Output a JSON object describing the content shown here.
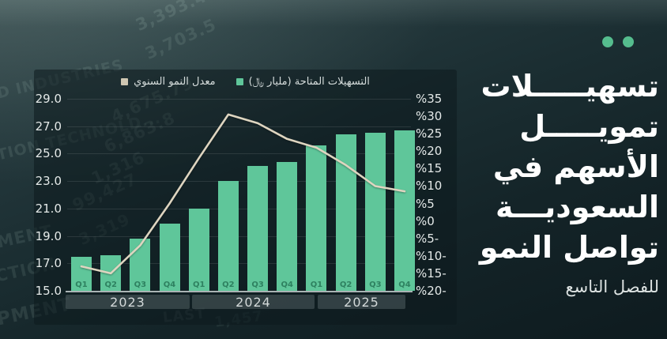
{
  "headline": {
    "lines": [
      "تسهيـــــلات",
      "تمويـــــل",
      "الأسهم في",
      "السعوديـــة",
      "تواصل النمو"
    ],
    "subtitle": "للفصل التاسع"
  },
  "brand": {
    "dot_color": "#55bd8e"
  },
  "background_ticker": [
    {
      "text": "3,393.40",
      "x": 168,
      "y": 22,
      "s": 21,
      "r": -24,
      "o": 0.14
    },
    {
      "text": "3,703.5",
      "x": 180,
      "y": 58,
      "s": 21,
      "r": -24,
      "o": 0.12
    },
    {
      "text": "4,675.79",
      "x": 137,
      "y": 138,
      "s": 21,
      "r": -24,
      "o": 0.16
    },
    {
      "text": "6,863.8",
      "x": 128,
      "y": 176,
      "s": 21,
      "r": -24,
      "o": 0.15
    },
    {
      "text": "1,316",
      "x": 112,
      "y": 216,
      "s": 21,
      "r": -24,
      "o": 0.14
    },
    {
      "text": "99,427",
      "x": 88,
      "y": 250,
      "s": 21,
      "r": -24,
      "o": 0.13
    },
    {
      "text": "3,319",
      "x": 96,
      "y": 293,
      "s": 20,
      "r": -24,
      "o": 0.1
    },
    {
      "text": "D INDUSTRIES",
      "x": -6,
      "y": 108,
      "s": 19,
      "r": -13,
      "o": 0.12
    },
    {
      "text": "TION TECHNOLD...",
      "x": -6,
      "y": 186,
      "s": 19,
      "r": -13,
      "o": 0.12
    },
    {
      "text": "MENT",
      "x": -6,
      "y": 295,
      "s": 21,
      "r": -12,
      "o": 0.12
    },
    {
      "text": "CTION",
      "x": -8,
      "y": 338,
      "s": 21,
      "r": -12,
      "o": 0.11
    },
    {
      "text": "PMENT",
      "x": -6,
      "y": 392,
      "s": 23,
      "r": -12,
      "o": 0.12
    },
    {
      "text": "LAST",
      "x": 205,
      "y": 392,
      "s": 18,
      "r": -6,
      "o": 0.1
    },
    {
      "text": "1,457",
      "x": 270,
      "y": 398,
      "s": 18,
      "r": -8,
      "o": 0.08
    }
  ],
  "chart_data": {
    "type": "combo",
    "title": "",
    "categories": [
      "Q1",
      "Q2",
      "Q3",
      "Q4",
      "Q1",
      "Q2",
      "Q3",
      "Q4",
      "Q1",
      "Q2",
      "Q3",
      "Q4"
    ],
    "year_groups": [
      "2023",
      "2024",
      "2025"
    ],
    "series": [
      {
        "name": "التسهيلات المتاحة (مليار ﷼)",
        "type": "bar",
        "axis": "left",
        "color": "#5fc69a",
        "values": [
          17.5,
          17.6,
          18.8,
          19.9,
          21.0,
          23.0,
          24.1,
          24.4,
          25.6,
          26.4,
          26.5,
          26.7
        ]
      },
      {
        "name": "معدل النمو السنوي",
        "type": "line",
        "axis": "right",
        "color": "#ded5c0",
        "values": [
          -13,
          -15,
          -7,
          5,
          18,
          30.5,
          28,
          23.5,
          21,
          16,
          10,
          8.5
        ]
      }
    ],
    "left_axis": {
      "min": 15,
      "max": 29,
      "tick_labels": [
        "29.0",
        "27.0",
        "25.0",
        "23.0",
        "21.0",
        "19.0",
        "17.0",
        "15.0"
      ]
    },
    "right_axis": {
      "min": -20,
      "max": 35,
      "tick_labels": [
        "%35",
        "%30",
        "%25",
        "%20",
        "%15",
        "%10",
        "%5",
        "%0",
        "%5-",
        "%10-",
        "%15-",
        "%20-"
      ]
    },
    "legend": [
      {
        "label": "معدل النمو السنوي",
        "color": "#cfc7b2"
      },
      {
        "label": "التسهيلات المتاحة (مليار ﷼)",
        "color": "#5fc69a"
      }
    ],
    "legend_position": "top-center",
    "grid": true,
    "bar_quarter_label_color": "#2e8160"
  }
}
